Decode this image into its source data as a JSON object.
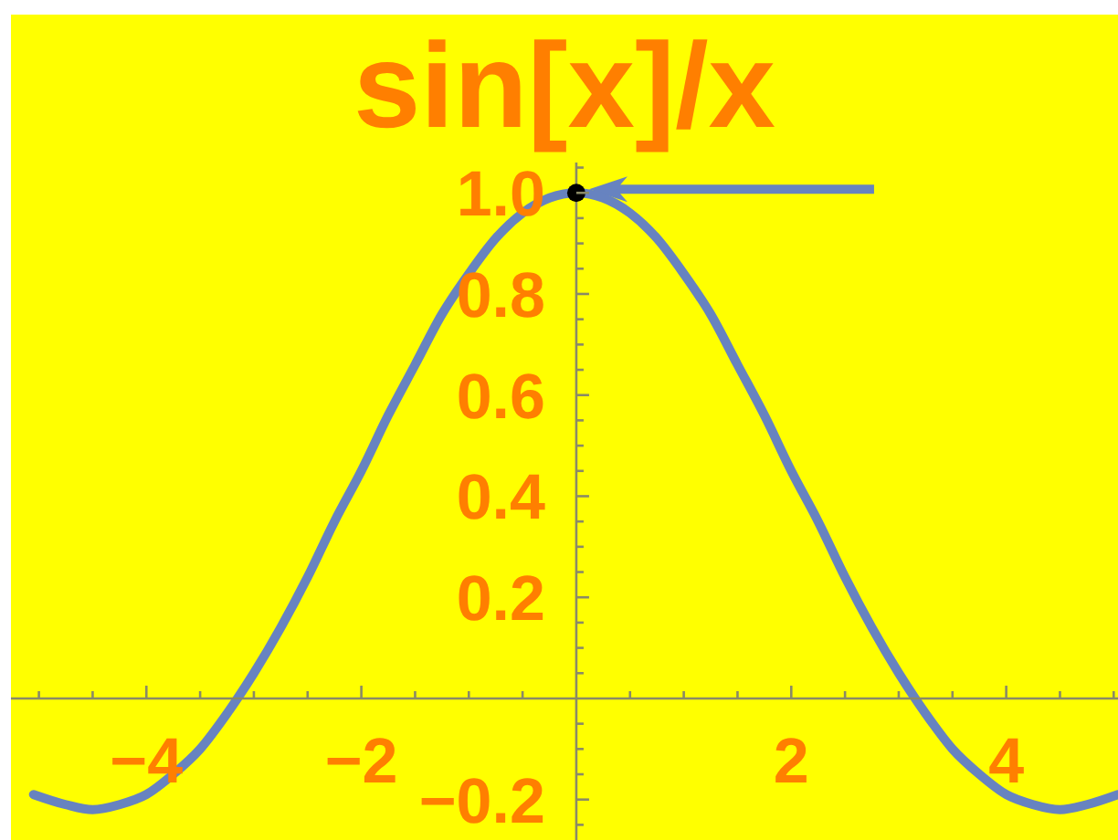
{
  "chart_data": {
    "type": "line",
    "title": "sin[x]/x",
    "series": [
      {
        "type": "line",
        "color": "#6783c0",
        "x": [
          -5.05,
          -4.75,
          -4.5,
          -4.25,
          -4,
          -3.75,
          -3.5,
          -3.25,
          -3,
          -2.75,
          -2.5,
          -2.25,
          -2,
          -1.75,
          -1.5,
          -1.25,
          -1,
          -0.75,
          -0.5,
          -0.25,
          0,
          0.25,
          0.5,
          0.75,
          1,
          1.25,
          1.5,
          1.75,
          2,
          2.25,
          2.5,
          2.75,
          3,
          3.25,
          3.5,
          3.75,
          4,
          4.25,
          4.5,
          4.75,
          5.04
        ],
        "values": [
          -0.19,
          -0.21,
          -0.22,
          -0.21,
          -0.19,
          -0.15,
          -0.1,
          -0.03,
          0.05,
          0.14,
          0.24,
          0.35,
          0.45,
          0.56,
          0.66,
          0.76,
          0.84,
          0.91,
          0.96,
          0.99,
          1,
          0.99,
          0.96,
          0.91,
          0.84,
          0.76,
          0.66,
          0.56,
          0.45,
          0.35,
          0.24,
          0.14,
          0.05,
          -0.03,
          -0.1,
          -0.15,
          -0.19,
          -0.21,
          -0.22,
          -0.21,
          -0.19
        ]
      },
      {
        "type": "scatter",
        "color": "#000000",
        "marker": "circle",
        "x": [
          0
        ],
        "values": [
          1
        ]
      }
    ],
    "xlim": [
      -5.26,
      5.04
    ],
    "ylim": [
      -0.28,
      1.06
    ],
    "xticks": [
      {
        "value": -5,
        "label": null
      },
      {
        "value": -4.5,
        "label": null
      },
      {
        "value": -4,
        "label": "−4"
      },
      {
        "value": -3.5,
        "label": null
      },
      {
        "value": -3,
        "label": null
      },
      {
        "value": -2.5,
        "label": null
      },
      {
        "value": -2,
        "label": "−2"
      },
      {
        "value": -1.5,
        "label": null
      },
      {
        "value": -1,
        "label": null
      },
      {
        "value": -0.5,
        "label": null
      },
      {
        "value": 0.5,
        "label": null
      },
      {
        "value": 1,
        "label": null
      },
      {
        "value": 1.5,
        "label": null
      },
      2,
      {
        "value": 2.5,
        "label": null
      },
      {
        "value": 3,
        "label": null
      },
      {
        "value": 3.5,
        "label": null
      },
      4,
      {
        "value": 4.5,
        "label": null
      },
      {
        "value": 5,
        "label": null
      }
    ],
    "yticks": [
      {
        "value": -0.25,
        "label": null
      },
      {
        "value": -0.2,
        "label": "−0.2"
      },
      {
        "value": -0.15,
        "label": null
      },
      {
        "value": -0.1,
        "label": null
      },
      {
        "value": -0.05,
        "label": null
      },
      {
        "value": 0.05,
        "label": null
      },
      {
        "value": 0.1,
        "label": null
      },
      {
        "value": 0.15,
        "label": null
      },
      0.2,
      {
        "value": 0.25,
        "label": null
      },
      {
        "value": 0.3,
        "label": null
      },
      {
        "value": 0.35,
        "label": null
      },
      0.4,
      {
        "value": 0.45,
        "label": null
      },
      {
        "value": 0.5,
        "label": null
      },
      {
        "value": 0.55,
        "label": null
      },
      0.6,
      {
        "value": 0.65,
        "label": null
      },
      {
        "value": 0.7,
        "label": null
      },
      {
        "value": 0.75,
        "label": null
      },
      0.8,
      {
        "value": 0.85,
        "label": null
      },
      {
        "value": 0.9,
        "label": null
      },
      {
        "value": 0.95,
        "label": null
      },
      {
        "value": 1,
        "label": "1.0"
      },
      {
        "value": 1.05,
        "label": null
      }
    ]
  }
}
